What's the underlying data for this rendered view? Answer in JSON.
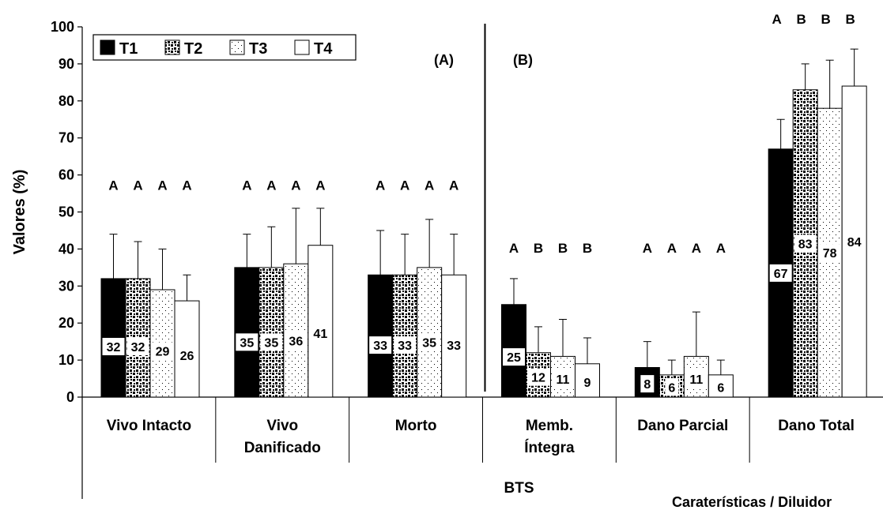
{
  "chart_data": {
    "type": "bar",
    "ylabel": "Valores (%)",
    "ylim": [
      0,
      100
    ],
    "y_ticks": [
      "0",
      "10",
      "20",
      "30",
      "40",
      "50",
      "60",
      "70",
      "80",
      "90",
      "100"
    ],
    "grid": false,
    "legend_position": "top-left",
    "series": [
      {
        "name": "T1",
        "pattern": "solid-black"
      },
      {
        "name": "T2",
        "pattern": "dense-dots"
      },
      {
        "name": "T3",
        "pattern": "sparse-dots"
      },
      {
        "name": "T4",
        "pattern": "white"
      }
    ],
    "panels": [
      {
        "label": "(A)"
      },
      {
        "label": "(B)"
      }
    ],
    "categories": [
      {
        "label": [
          "Vivo Intacto"
        ],
        "values": [
          32,
          32,
          29,
          26
        ],
        "errors_upper": [
          44,
          42,
          40,
          33
        ],
        "letters": [
          "A",
          "A",
          "A",
          "A"
        ]
      },
      {
        "label": [
          "Vivo",
          "Danificado"
        ],
        "values": [
          35,
          35,
          36,
          41
        ],
        "errors_upper": [
          44,
          46,
          51,
          51
        ],
        "letters": [
          "A",
          "A",
          "A",
          "A"
        ]
      },
      {
        "label": [
          "Morto"
        ],
        "values": [
          33,
          33,
          35,
          33
        ],
        "errors_upper": [
          45,
          44,
          48,
          44
        ],
        "letters": [
          "A",
          "A",
          "A",
          "A"
        ]
      },
      {
        "label": [
          "Memb.",
          "Íntegra"
        ],
        "values": [
          25,
          12,
          11,
          9
        ],
        "errors_upper": [
          32,
          19,
          21,
          16
        ],
        "letters": [
          "A",
          "B",
          "B",
          "B"
        ]
      },
      {
        "label": [
          "Dano Parcial"
        ],
        "values": [
          8,
          6,
          11,
          6
        ],
        "errors_upper": [
          15,
          10,
          23,
          10
        ],
        "letters": [
          "A",
          "A",
          "A",
          "A"
        ]
      },
      {
        "label": [
          "Dano Total"
        ],
        "values": [
          67,
          83,
          78,
          84
        ],
        "errors_upper": [
          75,
          90,
          91,
          94
        ],
        "letters": [
          "A",
          "B",
          "B",
          "B"
        ]
      }
    ],
    "group_label": "BTS",
    "xlabel": "Caraterísticas / Diluidor"
  }
}
